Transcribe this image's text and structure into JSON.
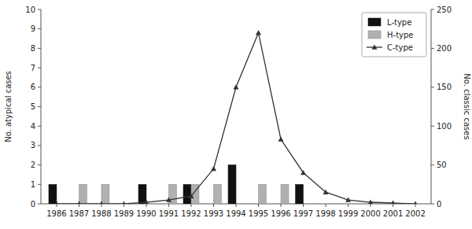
{
  "chart_data": {
    "type": "bar",
    "x": [
      1986,
      1987,
      1988,
      1989,
      1990,
      1991,
      1992,
      1993,
      1994,
      1995,
      1996,
      1997,
      1998,
      1999,
      2000,
      2001,
      2002
    ],
    "xlim": [
      1985.3,
      2002.7
    ],
    "xticks": [
      1986,
      1987,
      1988,
      1989,
      1990,
      1991,
      1992,
      1993,
      1994,
      1995,
      1996,
      1997,
      1998,
      1999,
      2000,
      2001,
      2002
    ],
    "ylabel": "No. atypical cases",
    "y2label": "No. classic cases",
    "ylim": [
      0,
      10
    ],
    "yticks": [
      0,
      1,
      2,
      3,
      4,
      5,
      6,
      7,
      8,
      9,
      10
    ],
    "y2lim": [
      0,
      250
    ],
    "y2ticks": [
      0,
      50,
      100,
      150,
      200,
      250
    ],
    "grid": false,
    "legend": "upper right",
    "series": [
      {
        "name": "L-type",
        "type": "bar",
        "color": "#111111",
        "values": [
          1,
          0,
          0,
          0,
          1,
          0,
          1,
          0,
          2,
          0,
          0,
          1,
          0,
          0,
          0,
          0,
          0
        ]
      },
      {
        "name": "H-type",
        "type": "bar",
        "color": "#b0b0b0",
        "values": [
          0,
          1,
          1,
          0,
          0,
          1,
          1,
          1,
          0,
          1,
          1,
          0,
          0,
          0,
          0,
          0,
          0
        ]
      },
      {
        "name": "C-type",
        "type": "line",
        "axis": "y2",
        "color": "#333333",
        "marker": "triangle",
        "values": [
          0,
          0,
          0,
          0,
          2,
          5,
          10,
          45,
          150,
          220,
          83,
          40,
          15,
          5,
          2,
          1,
          0
        ]
      }
    ]
  }
}
